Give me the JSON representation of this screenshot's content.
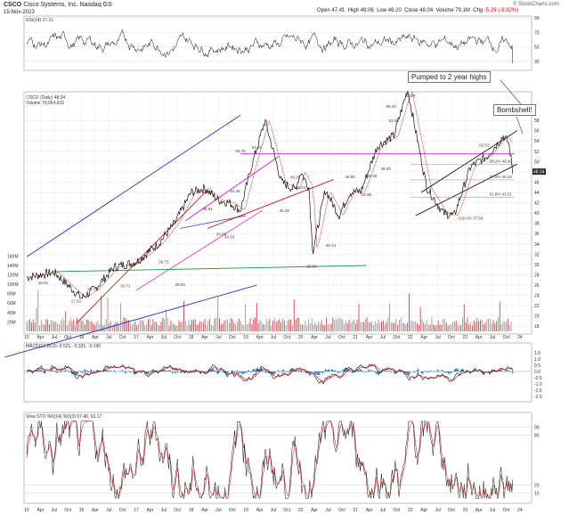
{
  "header": {
    "symbol": "CSCO",
    "company": "Cisco Systems, Inc.  Nasdaq GS",
    "date": "15-Nov-2023",
    "open_label": "Open",
    "open": "47.41",
    "high_label": "High",
    "high": "48.06",
    "low_label": "Low",
    "low": "46.20",
    "close_label": "Close",
    "close": "48.04",
    "volume_label": "Volume",
    "volume": "79.1M",
    "chg_label": "Chg",
    "chg": "-5.29 (-9.92%)",
    "watermark": "© StockCharts.com"
  },
  "panels": {
    "rsi_label": "RSI(14) 27.21",
    "price_label": "CSCO (Daily) 48.04",
    "volume_label": "Volume 79,054,616",
    "macd_label": "MACD(12,26,9) -0.521, -0.331, -0.190",
    "sto_label": "Slow STO %K(14) %D(3) 67.46, 63.17"
  },
  "annotations": {
    "pumped": "Pumped to 2 year highs",
    "bombshell": "Bombshell!"
  },
  "chart_data": [
    {
      "type": "line",
      "panel": "rsi",
      "title": "RSI(14) 27.21",
      "ylim": [
        20,
        90
      ],
      "yticks": [
        "90",
        "70",
        "50",
        "30"
      ],
      "current": 27.21
    },
    {
      "type": "line",
      "panel": "price",
      "title": "CSCO (Daily) 48.04",
      "x_ticks": [
        "15",
        "Apr",
        "Jul",
        "Oct",
        "16",
        "Apr",
        "Jul",
        "Oct",
        "17",
        "Apr",
        "Jul",
        "Oct",
        "18",
        "Apr",
        "Jul",
        "Oct",
        "19",
        "Apr",
        "Jul",
        "Oct",
        "20",
        "Apr",
        "Jul",
        "Oct",
        "21",
        "Apr",
        "Jul",
        "Oct",
        "22",
        "Apr",
        "Jul",
        "Oct",
        "23",
        "Apr",
        "Jul",
        "Oct",
        "24",
        "Apr"
      ],
      "y_ticks": [
        "58",
        "56",
        "54",
        "52",
        "50",
        "48",
        "46",
        "44",
        "42",
        "40",
        "38",
        "36",
        "34",
        "32",
        "30",
        "28",
        "26",
        "24",
        "22",
        "20",
        "18"
      ],
      "ylim": [
        17,
        62
      ],
      "x": [
        2015.0,
        2015.5,
        2016.0,
        2016.25,
        2016.6,
        2017.0,
        2017.4,
        2017.7,
        2018.0,
        2018.25,
        2018.5,
        2018.7,
        2018.9,
        2019.1,
        2019.35,
        2019.5,
        2019.65,
        2019.9,
        2020.0,
        2020.15,
        2020.22,
        2020.45,
        2020.7,
        2020.9,
        2021.1,
        2021.4,
        2021.7,
        2021.95,
        2022.3,
        2022.6,
        2022.8,
        2023.1,
        2023.4,
        2023.7,
        2023.8,
        2023.87
      ],
      "y": [
        27.5,
        28.5,
        23.5,
        25.3,
        29.5,
        30.5,
        34,
        38,
        44,
        44.8,
        42.5,
        42,
        40.5,
        49,
        58,
        52,
        46,
        44.5,
        48,
        45,
        32.4,
        44.5,
        39.5,
        44,
        44.2,
        53,
        55,
        64,
        45,
        40,
        39.5,
        49,
        51,
        55,
        53.5,
        48.04
      ],
      "price_labels": [
        "17.52",
        "18.81",
        "24.71",
        "26.80",
        "28.79",
        "30.73",
        "34.69",
        "38.81",
        "44.49",
        "48.25",
        "50.75",
        "51.82",
        "34.53",
        "30.24",
        "45.04",
        "46.86",
        "28.84",
        "36.25",
        "39.96",
        "46.50",
        "49.40",
        "52.46",
        "58.40",
        "64.29",
        "38.59",
        "52.63"
      ],
      "fib_levels": [
        "100.0% 37.59",
        "38.2% 49.40",
        "50.0% 46.43",
        "61.8% 43.01"
      ],
      "current": 48.04
    },
    {
      "type": "bar",
      "panel": "volume",
      "title": "Volume 79,054,616",
      "yticks": [
        "160M",
        "140M",
        "120M",
        "100M",
        "80M",
        "60M",
        "40M",
        "20M"
      ],
      "current": 79054616
    },
    {
      "type": "line",
      "panel": "macd",
      "title": "MACD(12,26,9) -0.521, -0.331, -0.190",
      "yticks": [
        "1.5",
        "1.0",
        "0.5",
        "0.0",
        "-0.5",
        "-1.0",
        "-1.5",
        "-2.0"
      ],
      "series": [
        {
          "name": "MACD",
          "current": -0.521
        },
        {
          "name": "Signal",
          "current": -0.331
        },
        {
          "name": "Histogram",
          "current": -0.19
        }
      ]
    },
    {
      "type": "line",
      "panel": "sto",
      "title": "Slow STO %K(14) %D(3) 67.46, 63.17",
      "ylim": [
        0,
        100
      ],
      "yticks": [
        "90",
        "80",
        "20",
        "10"
      ],
      "series": [
        {
          "name": "%K(14)",
          "current": 67.46
        },
        {
          "name": "%D(3)",
          "current": 63.17
        }
      ]
    }
  ]
}
